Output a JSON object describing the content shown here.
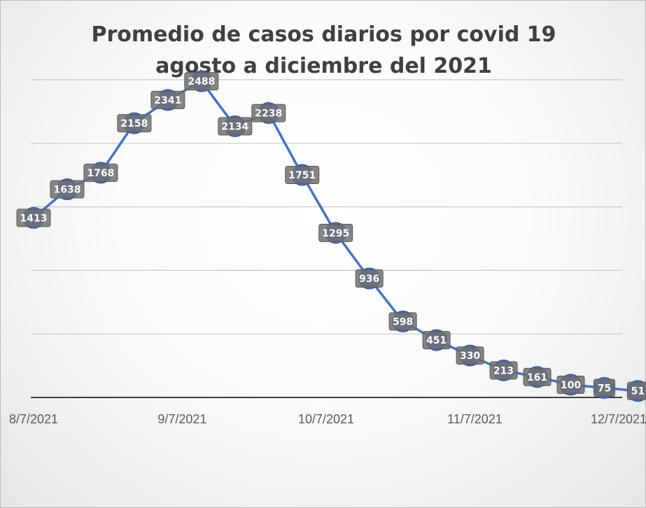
{
  "chart_data": {
    "type": "line",
    "title": [
      "Promedio de casos diarios por covid 19",
      "agosto a diciembre del 2021"
    ],
    "xlabel": "",
    "ylabel": "",
    "x_ticks": [
      "8/7/2021",
      "9/7/2021",
      "10/7/2021",
      "11/7/2021",
      "12/7/2021"
    ],
    "x": [
      "2021-08-07",
      "2021-08-14",
      "2021-08-21",
      "2021-08-28",
      "2021-09-04",
      "2021-09-11",
      "2021-09-18",
      "2021-09-25",
      "2021-10-02",
      "2021-10-09",
      "2021-10-16",
      "2021-10-23",
      "2021-10-30",
      "2021-11-06",
      "2021-11-13",
      "2021-11-20",
      "2021-11-27",
      "2021-12-04",
      "2021-12-11"
    ],
    "series": [
      {
        "values": [
          1413,
          1638,
          1768,
          2158,
          2341,
          2488,
          2134,
          2238,
          1751,
          1295,
          936,
          598,
          451,
          330,
          213,
          161,
          100,
          75,
          51
        ]
      }
    ],
    "xlim": [
      "2021-08-07",
      "2021-12-07"
    ],
    "ylim": [
      0,
      2500
    ],
    "grid": "horizontal",
    "legend": "none",
    "colors": {
      "line": "#4472c4",
      "marker": "#4472c4",
      "label_box": "#707070"
    }
  }
}
